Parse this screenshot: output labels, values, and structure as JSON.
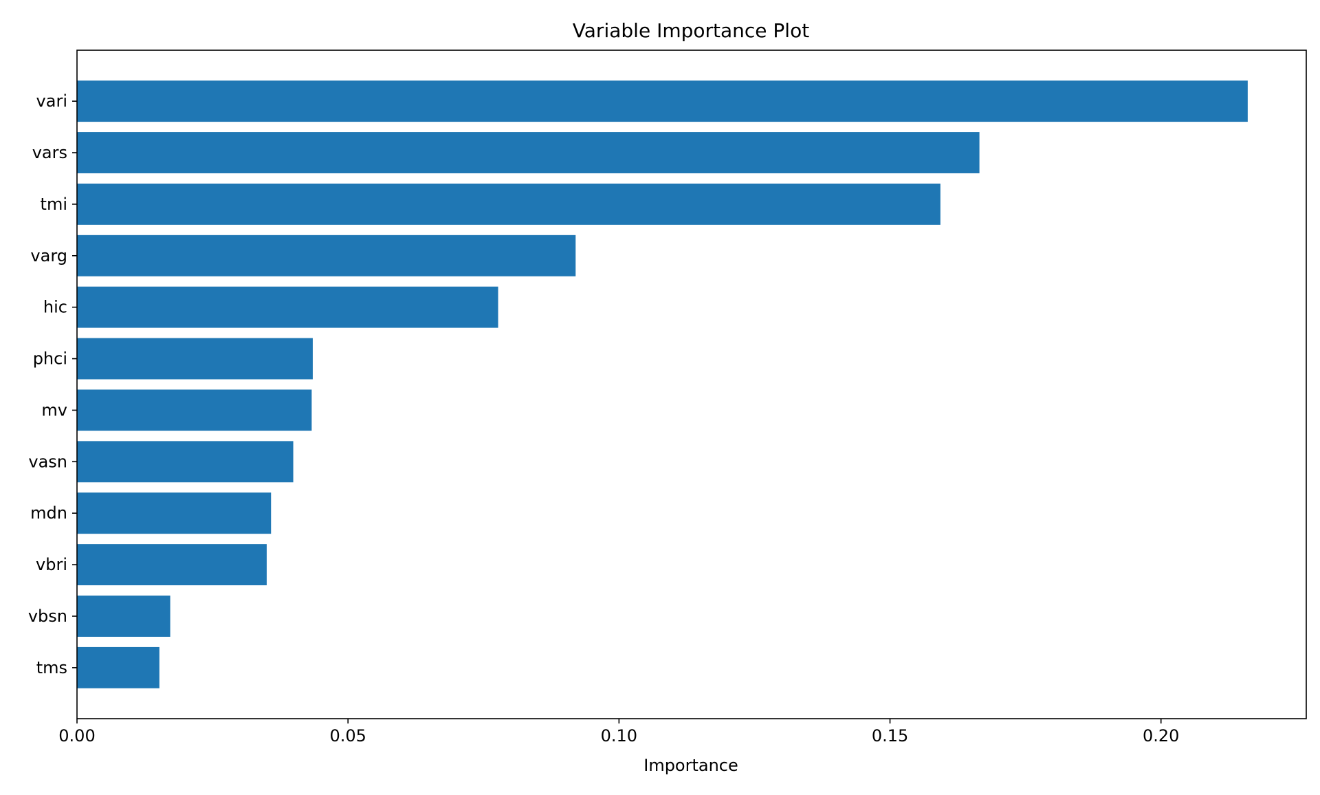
{
  "chart_data": {
    "type": "bar",
    "orientation": "horizontal",
    "title": "Variable Importance Plot",
    "xlabel": "Importance",
    "ylabel": "",
    "categories": [
      "vari",
      "vars",
      "tmi",
      "varg",
      "hic",
      "phci",
      "mv",
      "vasn",
      "mdn",
      "vbri",
      "vbsn",
      "tms"
    ],
    "values": [
      0.216,
      0.1665,
      0.1593,
      0.092,
      0.0777,
      0.0435,
      0.0433,
      0.0399,
      0.0358,
      0.035,
      0.0172,
      0.0152
    ],
    "xlim": [
      0,
      0.2268
    ],
    "xticks": [
      0.0,
      0.05,
      0.1,
      0.15,
      0.2
    ],
    "xtick_labels": [
      "0.00",
      "0.05",
      "0.10",
      "0.15",
      "0.20"
    ],
    "bar_color": "#1f77b4",
    "grid": false,
    "legend": false
  }
}
